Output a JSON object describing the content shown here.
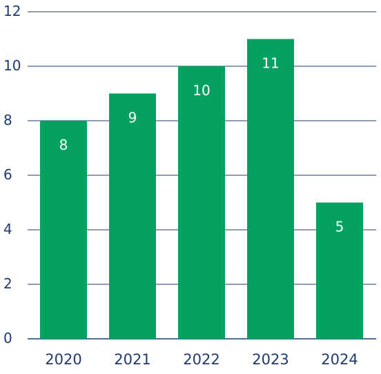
{
  "chart_data": {
    "type": "bar",
    "title": "",
    "xlabel": "",
    "ylabel": "",
    "categories": [
      "2020",
      "2021",
      "2022",
      "2023",
      "2024"
    ],
    "values": [
      8,
      9,
      10,
      11,
      5
    ],
    "data_labels": [
      "8",
      "9",
      "10",
      "11",
      "5"
    ],
    "ylim": [
      0,
      12
    ],
    "yticks": [
      0,
      2,
      4,
      6,
      8,
      10,
      12
    ],
    "grid": true,
    "legend": "none",
    "colors": {
      "bar": "#05a160",
      "grid": "#1e3a6e",
      "text": "#1e3a6e",
      "data_label": "#ffffff"
    }
  }
}
